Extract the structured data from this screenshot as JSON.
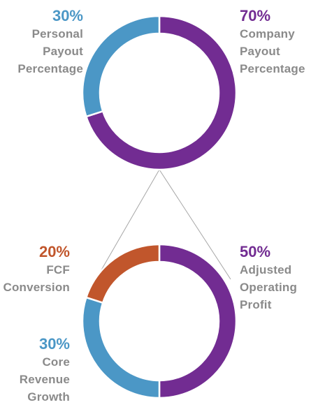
{
  "colors": {
    "purple": "#722C92",
    "blue": "#4B97C6",
    "orange": "#C1562C",
    "label_gray": "#8a8a8a",
    "connector": "#a6a6a6"
  },
  "chart_data": [
    {
      "type": "pie",
      "style": "donut",
      "slices": [
        {
          "label": "Company Payout Percentage",
          "value": 70,
          "display": "70%",
          "color": "#722C92",
          "desc_lines": [
            "Company",
            "Payout",
            "Percentage"
          ]
        },
        {
          "label": "Personal Payout Percentage",
          "value": 30,
          "display": "30%",
          "color": "#4B97C6",
          "desc_lines": [
            "Personal",
            "Payout",
            "Percentage"
          ]
        }
      ]
    },
    {
      "type": "pie",
      "style": "donut",
      "slices": [
        {
          "label": "Adjusted Operating Profit",
          "value": 50,
          "display": "50%",
          "color": "#722C92",
          "desc_lines": [
            "Adjusted",
            "Operating",
            "Profit"
          ]
        },
        {
          "label": "Core Revenue Growth",
          "value": 30,
          "display": "30%",
          "color": "#4B97C6",
          "desc_lines": [
            "Core",
            "Revenue",
            "Growth"
          ]
        },
        {
          "label": "FCF Conversion",
          "value": 20,
          "display": "20%",
          "color": "#C1562C",
          "desc_lines": [
            "FCF",
            "Conversion"
          ]
        }
      ]
    }
  ]
}
